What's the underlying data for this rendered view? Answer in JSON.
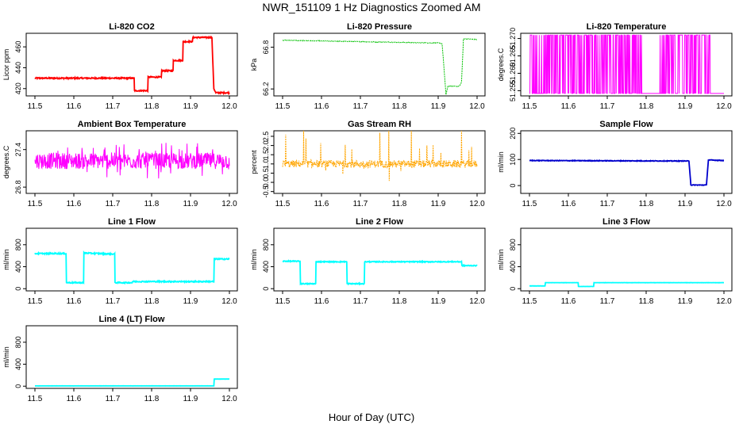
{
  "title": "NWR_151109  1 Hz Diagnostics Zoomed AM",
  "xlabel": "Hour of Day (UTC)",
  "x_ticks": [
    "11.5",
    "11.6",
    "11.7",
    "11.8",
    "11.9",
    "12.0"
  ],
  "colors": {
    "red": "#ff0000",
    "green": "#00c000",
    "magenta": "#ff00ff",
    "orange": "#ffa500",
    "blue": "#0000cc",
    "cyan": "#00ffff",
    "axis": "#000000"
  },
  "chart_data": [
    {
      "id": "co2",
      "type": "line",
      "title": "Li-820 CO2",
      "ylabel": "Licor ppm",
      "ylim": [
        413,
        473
      ],
      "y_ticks": [
        "420",
        "440",
        "460"
      ],
      "tick_values": [
        420,
        440,
        460
      ],
      "color": "#ff0000",
      "style": "step",
      "x": [
        11.5,
        11.755,
        11.755,
        11.79,
        11.79,
        11.825,
        11.825,
        11.855,
        11.855,
        11.88,
        11.88,
        11.905,
        11.905,
        11.955,
        11.96,
        11.965,
        12.0
      ],
      "values": [
        430,
        430,
        418,
        418,
        431,
        431,
        437,
        437,
        447,
        447,
        465,
        465,
        469,
        469,
        420,
        416,
        416
      ],
      "noise": 0.6
    },
    {
      "id": "pressure",
      "type": "line",
      "title": "Li-820 Pressure",
      "ylabel": "kPa",
      "ylim": [
        66.1,
        67.0
      ],
      "y_ticks": [
        "66.2",
        "66.8"
      ],
      "tick_values": [
        66.2,
        66.8
      ],
      "color": "#00c000",
      "style": "dotted",
      "x": [
        11.5,
        11.6,
        11.7,
        11.8,
        11.9,
        11.91,
        11.915,
        11.92,
        11.925,
        11.955,
        11.96,
        11.965,
        11.97,
        12.0
      ],
      "values": [
        66.9,
        66.89,
        66.88,
        66.87,
        66.86,
        66.85,
        66.5,
        66.12,
        66.24,
        66.24,
        66.3,
        66.92,
        66.92,
        66.91
      ],
      "noise": 0.005
    },
    {
      "id": "licor_temp",
      "type": "line",
      "title": "Li-820 Temperature",
      "ylabel": "degrees.C",
      "ylim": [
        51.2535,
        51.2715
      ],
      "y_ticks": [
        "51.255",
        "51.260",
        "51.265",
        "51.270"
      ],
      "tick_values": [
        51.255,
        51.26,
        51.265,
        51.27
      ],
      "color": "#ff00ff",
      "style": "toggle",
      "x": [
        11.5,
        12.0
      ],
      "values": [
        51.2535,
        51.2715
      ],
      "sparse_ranges": [
        [
          11.79,
          11.835
        ],
        [
          11.965,
          12.0
        ]
      ]
    },
    {
      "id": "box_temp",
      "type": "line",
      "title": "Ambient Box Temperature",
      "ylabel": "degrees.C",
      "ylim": [
        26.7,
        27.7
      ],
      "y_ticks": [
        "26.8",
        "27.4"
      ],
      "tick_values": [
        26.8,
        27.4
      ],
      "color": "#ff00ff",
      "style": "noise",
      "x": [
        11.5,
        12.0
      ],
      "values": [
        27.22,
        27.22
      ],
      "noise": 0.13
    },
    {
      "id": "rh",
      "type": "line",
      "title": "Gas Stream RH",
      "ylabel": "percent",
      "ylim": [
        -0.6,
        2.8
      ],
      "y_ticks": [
        "-0.5",
        "0.0",
        "0.5",
        "1.0",
        "1.5",
        "2.0",
        "2.5"
      ],
      "tick_values": [
        -0.5,
        0,
        0.5,
        1.0,
        1.5,
        2.0,
        2.5
      ],
      "color": "#ffa500",
      "style": "spiky",
      "x": [
        11.5,
        12.0
      ],
      "values": [
        1.0,
        1.0
      ],
      "noise": 0.2
    },
    {
      "id": "sample_flow",
      "type": "line",
      "title": "Sample Flow",
      "ylabel": "ml/min",
      "ylim": [
        -30,
        210
      ],
      "y_ticks": [
        "0",
        "100",
        "200"
      ],
      "tick_values": [
        0,
        100,
        200
      ],
      "color": "#0000cc",
      "style": "step",
      "x": [
        11.5,
        11.91,
        11.915,
        11.955,
        11.96,
        12.0
      ],
      "values": [
        96,
        94,
        2,
        2,
        98,
        96
      ],
      "noise": 1.2
    },
    {
      "id": "line1",
      "type": "line",
      "title": "Line 1 Flow",
      "ylabel": "ml/min",
      "ylim": [
        -40,
        1100
      ],
      "y_ticks": [
        "0",
        "400",
        "800"
      ],
      "tick_values": [
        0,
        400,
        800
      ],
      "color": "#00ffff",
      "style": "step",
      "x": [
        11.5,
        11.58,
        11.58,
        11.625,
        11.625,
        11.705,
        11.705,
        11.75,
        11.75,
        11.96,
        11.96,
        12.0
      ],
      "values": [
        640,
        640,
        110,
        110,
        650,
        630,
        110,
        110,
        130,
        130,
        540,
        540
      ],
      "noise": 10
    },
    {
      "id": "line2",
      "type": "line",
      "title": "Line 2 Flow",
      "ylabel": "ml/min",
      "ylim": [
        -40,
        1100
      ],
      "y_ticks": [
        "0",
        "400",
        "800"
      ],
      "tick_values": [
        0,
        400,
        800
      ],
      "color": "#00ffff",
      "style": "step",
      "x": [
        11.5,
        11.545,
        11.545,
        11.585,
        11.585,
        11.665,
        11.665,
        11.71,
        11.71,
        11.96,
        11.96,
        12.0
      ],
      "values": [
        500,
        500,
        90,
        90,
        490,
        490,
        90,
        90,
        490,
        490,
        420,
        420
      ],
      "noise": 8
    },
    {
      "id": "line3",
      "type": "line",
      "title": "Line 3 Flow",
      "ylabel": "ml/min",
      "ylim": [
        -40,
        1100
      ],
      "y_ticks": [
        "0",
        "400",
        "800"
      ],
      "tick_values": [
        0,
        400,
        800
      ],
      "color": "#00ffff",
      "style": "step",
      "x": [
        11.5,
        11.54,
        11.54,
        11.625,
        11.625,
        11.665,
        11.665,
        12.0
      ],
      "values": [
        50,
        50,
        110,
        110,
        40,
        40,
        110,
        110
      ],
      "noise": 1
    },
    {
      "id": "line4",
      "type": "line",
      "title": "Line 4 (LT) Flow",
      "ylabel": "ml/min",
      "ylim": [
        -40,
        1100
      ],
      "y_ticks": [
        "0",
        "400",
        "800"
      ],
      "tick_values": [
        0,
        400,
        800
      ],
      "color": "#00ffff",
      "style": "step",
      "x": [
        11.5,
        11.96,
        11.96,
        12.0
      ],
      "values": [
        5,
        5,
        130,
        130
      ],
      "noise": 1
    }
  ]
}
